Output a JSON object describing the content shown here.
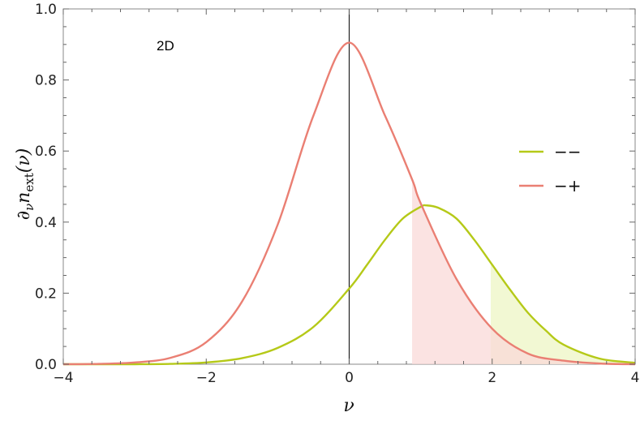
{
  "chart_data": {
    "type": "line",
    "xlabel": "ν",
    "ylabel_parts": {
      "main": "∂",
      "sub1": "ν",
      "mid": "n",
      "sub2": "ext",
      "tail": "(ν)"
    },
    "annotation": "2D",
    "xlim": [
      -4,
      4
    ],
    "ylim": [
      0,
      1.0
    ],
    "x_ticks": [
      -4,
      -2,
      0,
      2,
      4
    ],
    "x_tick_labels": [
      "−4",
      "−2",
      "0",
      "2",
      "4"
    ],
    "y_ticks": [
      0,
      0.2,
      0.4,
      0.6,
      0.8,
      1.0
    ],
    "y_tick_labels": [
      "0.0",
      "0.2",
      "0.4",
      "0.6",
      "0.8",
      "1.0"
    ],
    "vertical_line_x": 0,
    "legend_position": "right",
    "series": [
      {
        "name": "−−",
        "color": "#b5c918",
        "fill_color": "#eef5c4",
        "shade_from_x": 1.98,
        "x": [
          -4.0,
          -3.5,
          -3.0,
          -2.5,
          -2.0,
          -1.5,
          -1.0,
          -0.5,
          0.0,
          0.25,
          0.5,
          0.75,
          1.0,
          1.08,
          1.25,
          1.5,
          1.75,
          2.0,
          2.25,
          2.5,
          2.75,
          3.0,
          3.5,
          4.0
        ],
        "y": [
          0.0,
          0.0,
          0.0,
          0.001,
          0.005,
          0.017,
          0.046,
          0.105,
          0.213,
          0.28,
          0.35,
          0.41,
          0.443,
          0.447,
          0.44,
          0.41,
          0.35,
          0.28,
          0.21,
          0.145,
          0.095,
          0.055,
          0.016,
          0.004
        ]
      },
      {
        "name": "−+",
        "color": "#ea7f73",
        "fill_color": "#f9dad8",
        "shade_from_x": 0.88,
        "x": [
          -4.0,
          -3.5,
          -3.0,
          -2.5,
          -2.0,
          -1.5,
          -1.0,
          -0.5,
          0.0,
          0.5,
          0.88,
          1.0,
          1.5,
          2.0,
          2.5,
          3.0,
          3.5,
          4.0
        ],
        "y": [
          0.0,
          0.001,
          0.005,
          0.018,
          0.062,
          0.176,
          0.393,
          0.7,
          0.905,
          0.7,
          0.52,
          0.453,
          0.24,
          0.1,
          0.03,
          0.01,
          0.002,
          0.0
        ]
      }
    ]
  }
}
